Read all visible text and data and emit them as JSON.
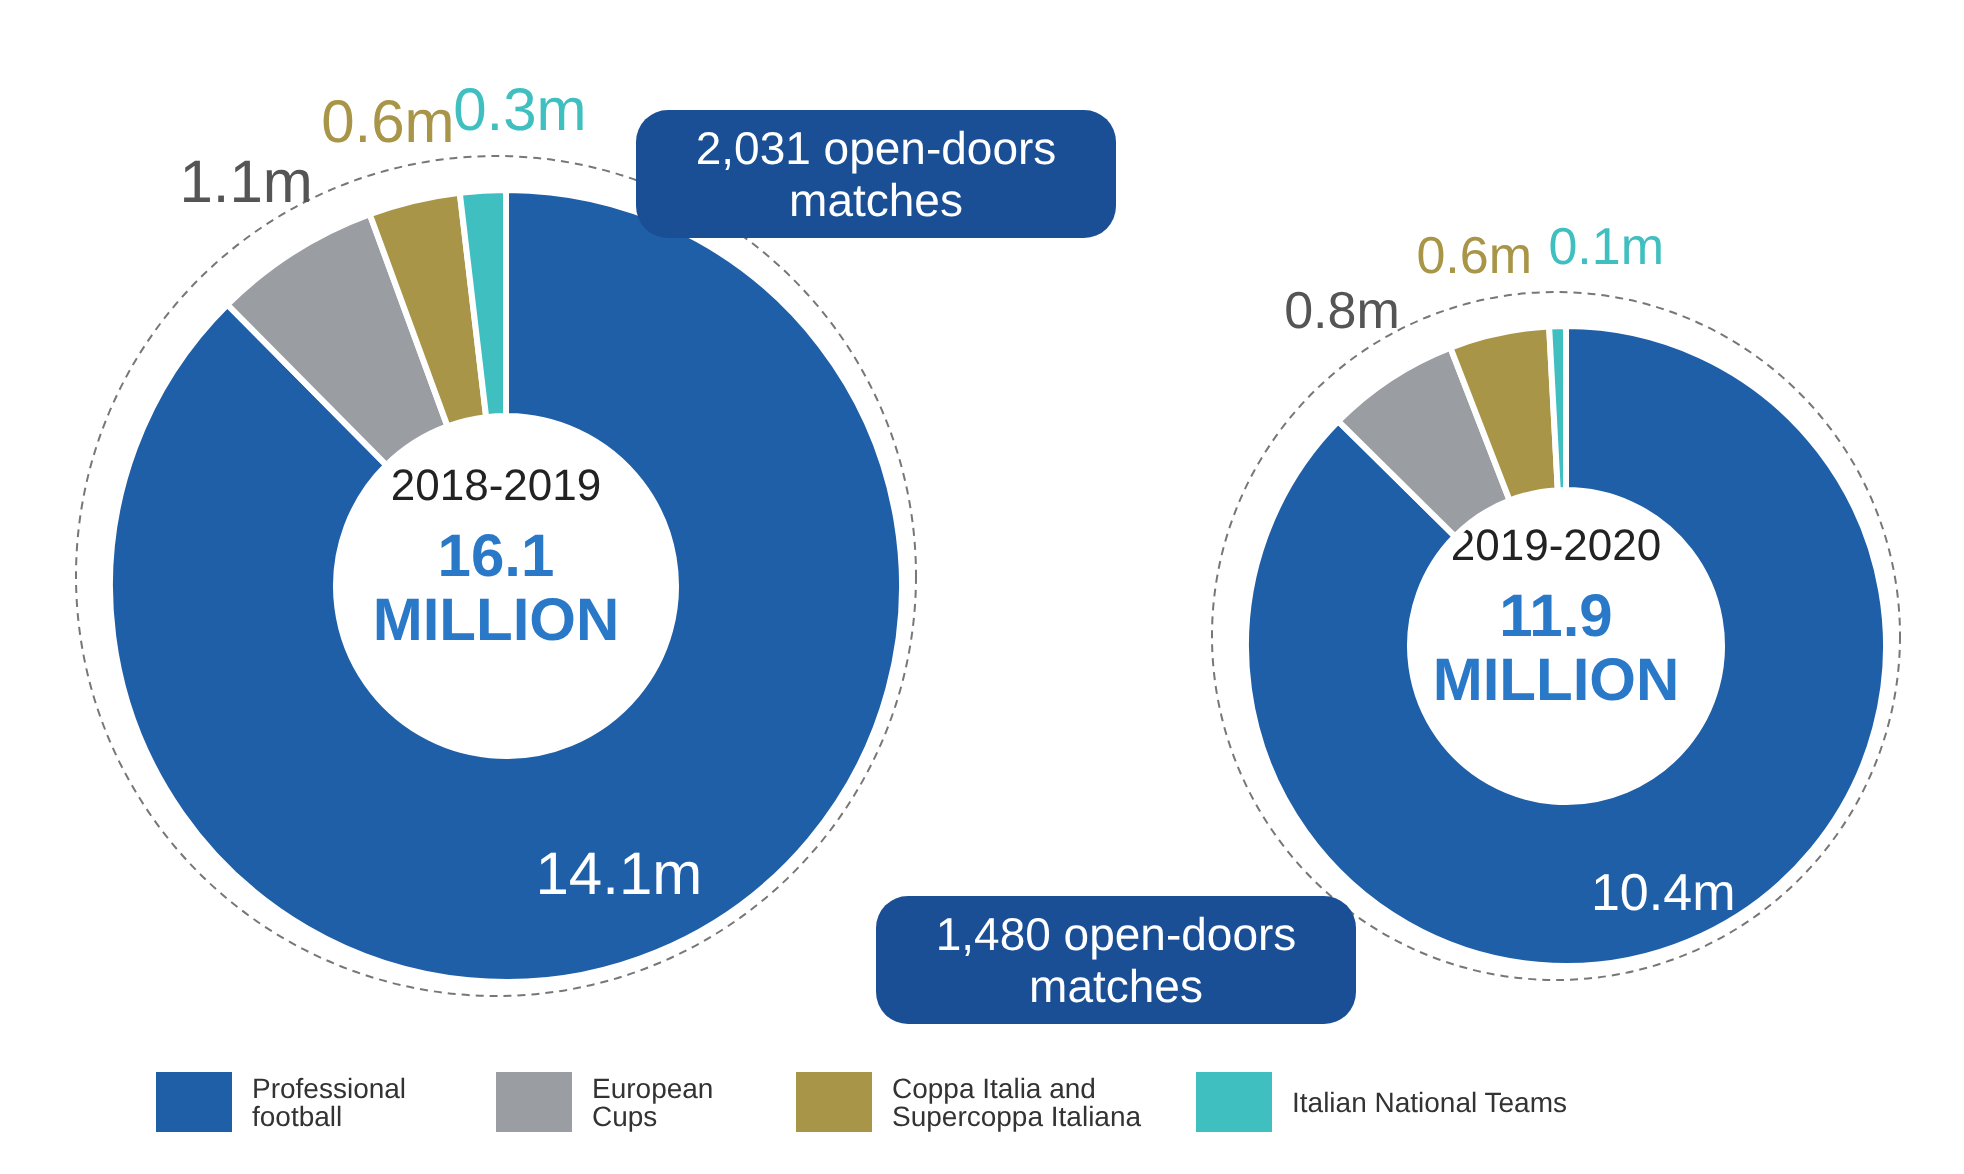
{
  "chart_data": [
    {
      "type": "donut",
      "title": "2018-2019",
      "subtitle": "16.1 MILLION",
      "categories": [
        "Professional football",
        "European Cups",
        "Coppa Italia and Supercoppa Italiana",
        "Italian National Teams"
      ],
      "values": [
        14.1,
        1.1,
        0.6,
        0.3
      ],
      "colors": [
        "#1f5fa8",
        "#9a9ea3",
        "#a89548",
        "#3fbfc0"
      ],
      "value_labels": [
        "14.1m",
        "1.1m",
        "0.6m",
        "0.3m"
      ],
      "annotations": [
        "2,031 open-doors matches"
      ],
      "legend": "bottom"
    },
    {
      "type": "donut",
      "title": "2019-2020",
      "subtitle": "11.9 MILLION",
      "categories": [
        null,
        null,
        null,
        null
      ],
      "values": [
        10.4,
        0.8,
        0.6,
        0.1
      ],
      "colors": [
        "#1f5fa8",
        "#9a9ea3",
        "#a89548",
        "#3fbfc0"
      ],
      "value_labels": [
        "10.4m",
        "0.8m",
        "0.6m",
        "0.1m"
      ],
      "annotations": [
        "1,480 open-doors matches"
      ]
    }
  ]
}
